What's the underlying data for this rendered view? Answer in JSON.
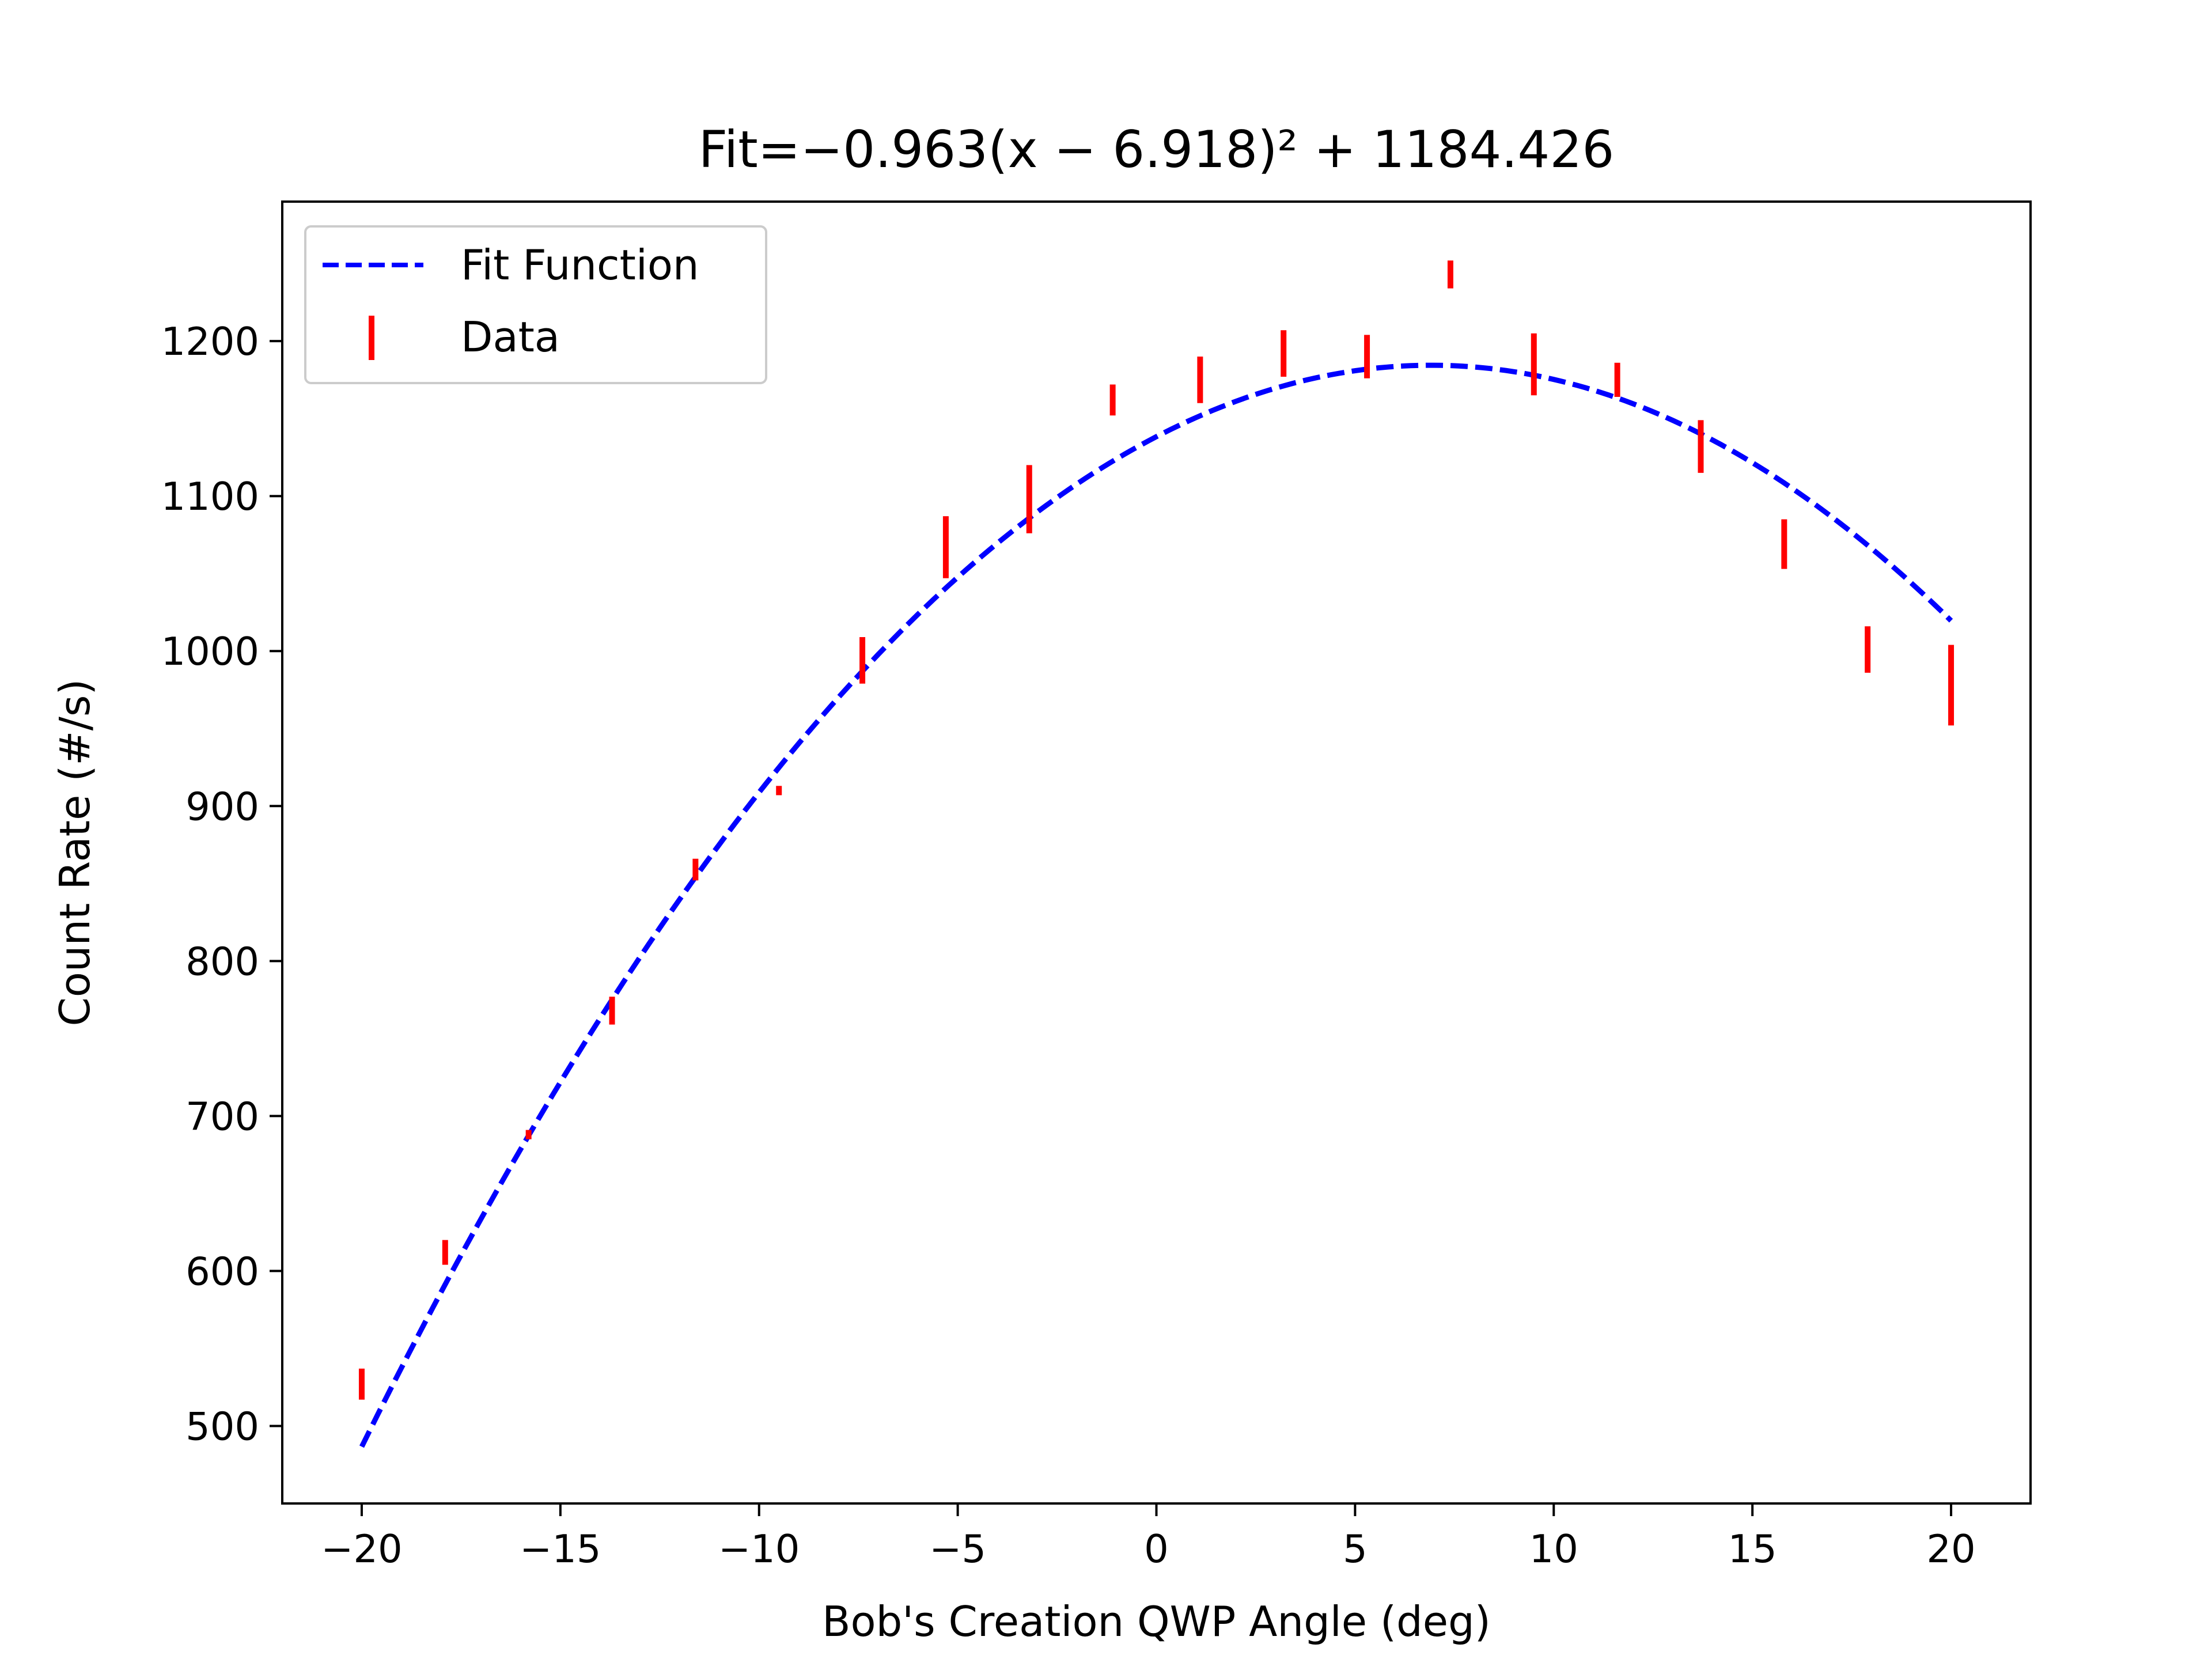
{
  "chart_data": {
    "type": "scatter",
    "title": "Fit=−0.963(x − 6.918)² + 1184.426",
    "xlabel": "Bob's Creation QWP Angle (deg)",
    "ylabel": "Count Rate (#/s)",
    "xlim": [
      -22,
      22
    ],
    "ylim": [
      450,
      1290
    ],
    "xticks": [
      -20,
      -15,
      -10,
      -5,
      0,
      5,
      10,
      15,
      20
    ],
    "xtick_labels": [
      "−20",
      "−15",
      "−10",
      "−5",
      "0",
      "5",
      "10",
      "15",
      "20"
    ],
    "yticks": [
      500,
      600,
      700,
      800,
      900,
      1000,
      1100,
      1200
    ],
    "ytick_labels": [
      "500",
      "600",
      "700",
      "800",
      "900",
      "1000",
      "1100",
      "1200"
    ],
    "grid": false,
    "legend_position": "top-left",
    "series": [
      {
        "name": "Fit Function",
        "kind": "line",
        "style": "dashed",
        "color": "#0000ff",
        "fit": {
          "a": -0.963,
          "h": 6.918,
          "k": 1184.426
        },
        "x_range": [
          -20,
          20
        ]
      },
      {
        "name": "Data",
        "kind": "errorbar",
        "color": "#ff0000",
        "points": [
          {
            "x": -20.0,
            "y": 527,
            "err": 10
          },
          {
            "x": -17.9,
            "y": 612,
            "err": 8
          },
          {
            "x": -15.8,
            "y": 688,
            "err": 3
          },
          {
            "x": -13.7,
            "y": 768,
            "err": 9
          },
          {
            "x": -11.6,
            "y": 859,
            "err": 7
          },
          {
            "x": -9.5,
            "y": 910,
            "err": 3
          },
          {
            "x": -7.4,
            "y": 994,
            "err": 15
          },
          {
            "x": -5.3,
            "y": 1067,
            "err": 20
          },
          {
            "x": -3.2,
            "y": 1098,
            "err": 22
          },
          {
            "x": -1.1,
            "y": 1162,
            "err": 10
          },
          {
            "x": 1.1,
            "y": 1175,
            "err": 15
          },
          {
            "x": 3.2,
            "y": 1192,
            "err": 15
          },
          {
            "x": 5.3,
            "y": 1190,
            "err": 14
          },
          {
            "x": 7.4,
            "y": 1243,
            "err": 9
          },
          {
            "x": 9.5,
            "y": 1185,
            "err": 20
          },
          {
            "x": 11.6,
            "y": 1175,
            "err": 11
          },
          {
            "x": 13.7,
            "y": 1132,
            "err": 17
          },
          {
            "x": 15.8,
            "y": 1069,
            "err": 16
          },
          {
            "x": 17.9,
            "y": 1001,
            "err": 15
          },
          {
            "x": 20.0,
            "y": 978,
            "err": 26
          }
        ]
      }
    ]
  }
}
